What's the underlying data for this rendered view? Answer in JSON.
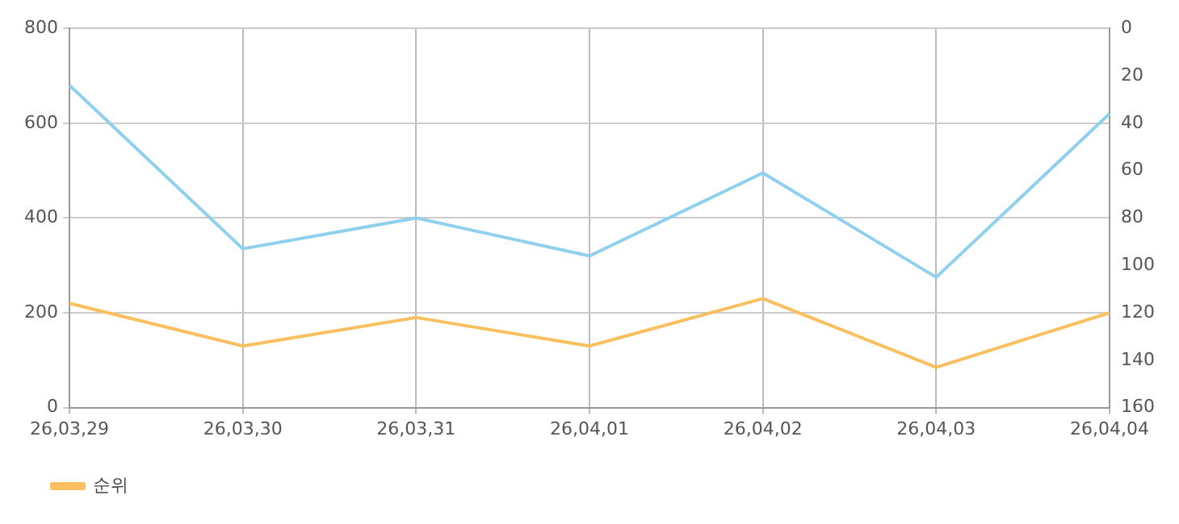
{
  "chart_data": {
    "type": "line",
    "categories": [
      "26,03,29",
      "26,03,30",
      "26,03,31",
      "26,04,01",
      "26,04,02",
      "26,04,03",
      "26,04,04"
    ],
    "series": [
      {
        "color": "#8fd0ef",
        "values": [
          680,
          335,
          400,
          320,
          495,
          275,
          620
        ]
      },
      {
        "name": "순위",
        "color": "#fbbf60",
        "axis": "y2",
        "values": [
          116,
          134,
          122,
          134,
          114,
          143,
          120
        ]
      }
    ],
    "ylim": [
      0,
      800
    ],
    "yticks": [
      0,
      200,
      400,
      600,
      800
    ],
    "y2lim": [
      160,
      0
    ],
    "y2ticks": [
      0,
      20,
      40,
      60,
      80,
      100,
      120,
      140,
      160
    ],
    "grid": true,
    "legend": "bottom left",
    "marker": "none",
    "line_style": "solid"
  }
}
